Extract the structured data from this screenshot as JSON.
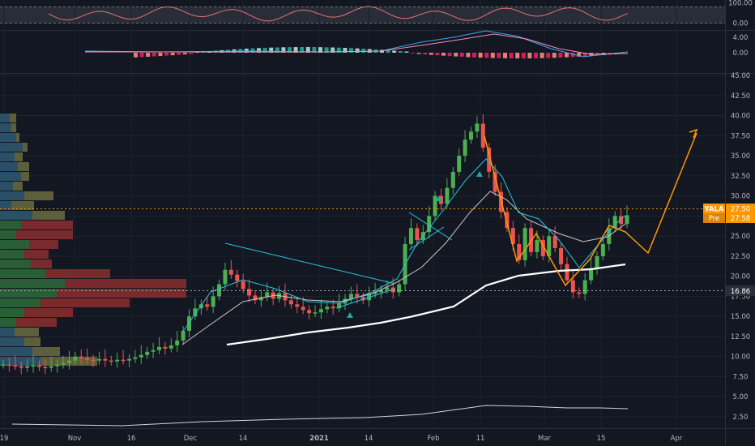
{
  "symbol": "YALA",
  "session_tag": "Pre",
  "price_tag": "27.58",
  "support_tag": "16.86",
  "colors": {
    "background": "#131722",
    "bull": "#26a69a",
    "bull_candle": "#4caf50",
    "bear": "#ef5350",
    "sma_fast": "#26c6da",
    "sma_mid": "#d1c4c4",
    "sma_slow": "#ffffff",
    "pattern": "#ff9800",
    "trendline": "#26c6da",
    "rsi_line": "#e57373"
  },
  "chart_data": {
    "type": "line",
    "title": "",
    "symbol": "YALA",
    "panes": [
      "rsi",
      "macd",
      "price"
    ],
    "rsi": {
      "ylim": [
        0,
        100
      ],
      "tick_labels": [
        "100.00",
        "0.00"
      ]
    },
    "macd": {
      "tick_labels": [
        "4.00",
        "0.00"
      ]
    },
    "price": {
      "ylim": [
        1.5,
        47
      ],
      "tick_labels": [
        "45.00",
        "42.50",
        "40.00",
        "37.50",
        "35.00",
        "32.50",
        "30.00",
        "27.50",
        "25.00",
        "22.50",
        "20.00",
        "17.50",
        "15.00",
        "12.50",
        "10.00",
        "7.50",
        "5.00",
        "2.50"
      ],
      "last_price": 27.58,
      "support_level": 16.86,
      "x_tick_labels": [
        "19",
        "Nov",
        "16",
        "Dec",
        "14",
        "2021",
        "14",
        "Feb",
        "11",
        "Mar",
        "15",
        "Apr"
      ]
    }
  }
}
